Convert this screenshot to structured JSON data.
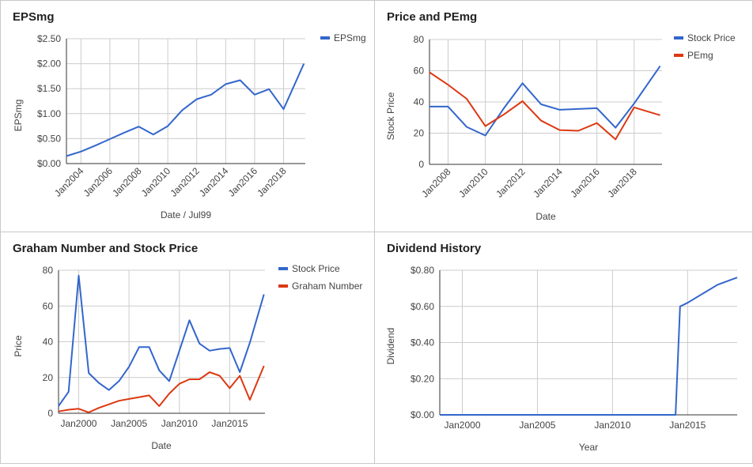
{
  "colors": {
    "blue": "#3366cc",
    "red": "#dc3912",
    "grid": "#cccccc",
    "axis": "#333333",
    "text": "#444444"
  },
  "chart_data": [
    {
      "type": "line",
      "title": "EPSmg",
      "xlabel": "Date / Jul99",
      "ylabel": "EPSmg",
      "xlim": [
        2003,
        2019.5
      ],
      "ylim": [
        0,
        2.5
      ],
      "x_ticks": [
        2004,
        2006,
        2008,
        2010,
        2012,
        2014,
        2016,
        2018
      ],
      "x_tick_labels": [
        "Jan2004",
        "Jan2006",
        "Jan2008",
        "Jan2010",
        "Jan2012",
        "Jan2014",
        "Jan2016",
        "Jan2018"
      ],
      "y_ticks": [
        0,
        0.5,
        1,
        1.5,
        2,
        2.5
      ],
      "y_tick_labels": [
        "$0.00",
        "$0.50",
        "$1.00",
        "$1.50",
        "$2.00",
        "$2.50"
      ],
      "legend_position": "top-right",
      "grid": true,
      "series": [
        {
          "name": "EPSmg",
          "color": "#3366cc",
          "x": [
            2003,
            2004,
            2005,
            2006,
            2007,
            2008,
            2009,
            2010,
            2011,
            2012,
            2013,
            2014,
            2015,
            2016,
            2017,
            2018,
            2019.4
          ],
          "y": [
            0.15,
            0.24,
            0.36,
            0.49,
            0.62,
            0.74,
            0.58,
            0.75,
            1.07,
            1.29,
            1.38,
            1.59,
            1.67,
            1.38,
            1.49,
            1.09,
            2.0
          ]
        }
      ]
    },
    {
      "type": "line",
      "title": "Price and PEmg",
      "xlabel": "Date",
      "ylabel": "Stock Price",
      "xlim": [
        2007,
        2019.5
      ],
      "ylim": [
        0,
        80
      ],
      "x_ticks": [
        2008,
        2010,
        2012,
        2014,
        2016,
        2018
      ],
      "x_tick_labels": [
        "Jan2008",
        "Jan2010",
        "Jan2012",
        "Jan2014",
        "Jan2016",
        "Jan2018"
      ],
      "y_ticks": [
        0,
        20,
        40,
        60,
        80
      ],
      "y_tick_labels": [
        "0",
        "20",
        "40",
        "60",
        "80"
      ],
      "legend_position": "top-right",
      "grid": true,
      "series": [
        {
          "name": "Stock Price",
          "color": "#3366cc",
          "x": [
            2007,
            2008,
            2009,
            2010,
            2011,
            2012,
            2013,
            2014,
            2015,
            2016,
            2017,
            2018,
            2019.4
          ],
          "y": [
            37,
            37,
            24,
            18.5,
            36,
            52,
            38.5,
            35,
            35.5,
            36,
            23.5,
            39,
            63
          ]
        },
        {
          "name": "PEmg",
          "color": "#dc3912",
          "x": [
            2007,
            2008,
            2009,
            2010,
            2011,
            2012,
            2013,
            2014,
            2015,
            2016,
            2017,
            2018,
            2019.4
          ],
          "y": [
            59,
            51,
            42,
            24.5,
            32,
            40.5,
            28,
            22,
            21.5,
            26.5,
            16,
            36.5,
            31.5
          ]
        }
      ]
    },
    {
      "type": "line",
      "title": "Graham Number and Stock Price",
      "xlabel": "Date",
      "ylabel": "Price",
      "xlim": [
        1998,
        2018.5
      ],
      "ylim": [
        0,
        80
      ],
      "x_ticks": [
        2000,
        2005,
        2010,
        2015
      ],
      "x_tick_labels": [
        "Jan2000",
        "Jan2005",
        "Jan2010",
        "Jan2015"
      ],
      "y_ticks": [
        0,
        20,
        40,
        60,
        80
      ],
      "y_tick_labels": [
        "0",
        "20",
        "40",
        "60",
        "80"
      ],
      "legend_position": "top-right",
      "grid": true,
      "series": [
        {
          "name": "Stock Price",
          "color": "#3366cc",
          "x": [
            1998,
            1999,
            2000,
            2001,
            2002,
            2003,
            2004,
            2005,
            2006,
            2007,
            2008,
            2009,
            2010,
            2011,
            2012,
            2013,
            2014,
            2015,
            2016,
            2017,
            2018.4
          ],
          "y": [
            4,
            12,
            77,
            22.5,
            17,
            13,
            18,
            26,
            37,
            37,
            24,
            18,
            35,
            52,
            39,
            35,
            36,
            36.5,
            23,
            39.5,
            66.5
          ]
        },
        {
          "name": "Graham Number",
          "color": "#dc3912",
          "x": [
            1998,
            1999,
            2000,
            2001,
            2002,
            2003,
            2004,
            2005,
            2006,
            2007,
            2008,
            2009,
            2010,
            2011,
            2012,
            2013,
            2014,
            2015,
            2016,
            2017,
            2018.4
          ],
          "y": [
            1,
            2,
            2.5,
            0.5,
            3,
            5,
            7,
            8,
            9,
            10,
            4,
            11,
            16.5,
            19,
            19,
            23,
            21,
            14,
            21,
            7.5,
            26.5
          ]
        }
      ]
    },
    {
      "type": "line",
      "title": "Dividend History",
      "xlabel": "Year",
      "ylabel": "Dividend",
      "xlim": [
        1998.5,
        2018.3
      ],
      "ylim": [
        0,
        0.8
      ],
      "x_ticks": [
        2000,
        2005,
        2010,
        2015
      ],
      "x_tick_labels": [
        "Jan2000",
        "Jan2005",
        "Jan2010",
        "Jan2015"
      ],
      "y_ticks": [
        0,
        0.2,
        0.4,
        0.6,
        0.8
      ],
      "y_tick_labels": [
        "$0.00",
        "$0.20",
        "$0.40",
        "$0.60",
        "$0.80"
      ],
      "legend_position": "none",
      "grid": true,
      "series": [
        {
          "color": "#3366cc",
          "x": [
            1998.5,
            2014.2,
            2014.5,
            2015,
            2016,
            2017,
            2018.3
          ],
          "y": [
            0,
            0,
            0.6,
            0.62,
            0.67,
            0.72,
            0.76
          ]
        }
      ]
    }
  ]
}
